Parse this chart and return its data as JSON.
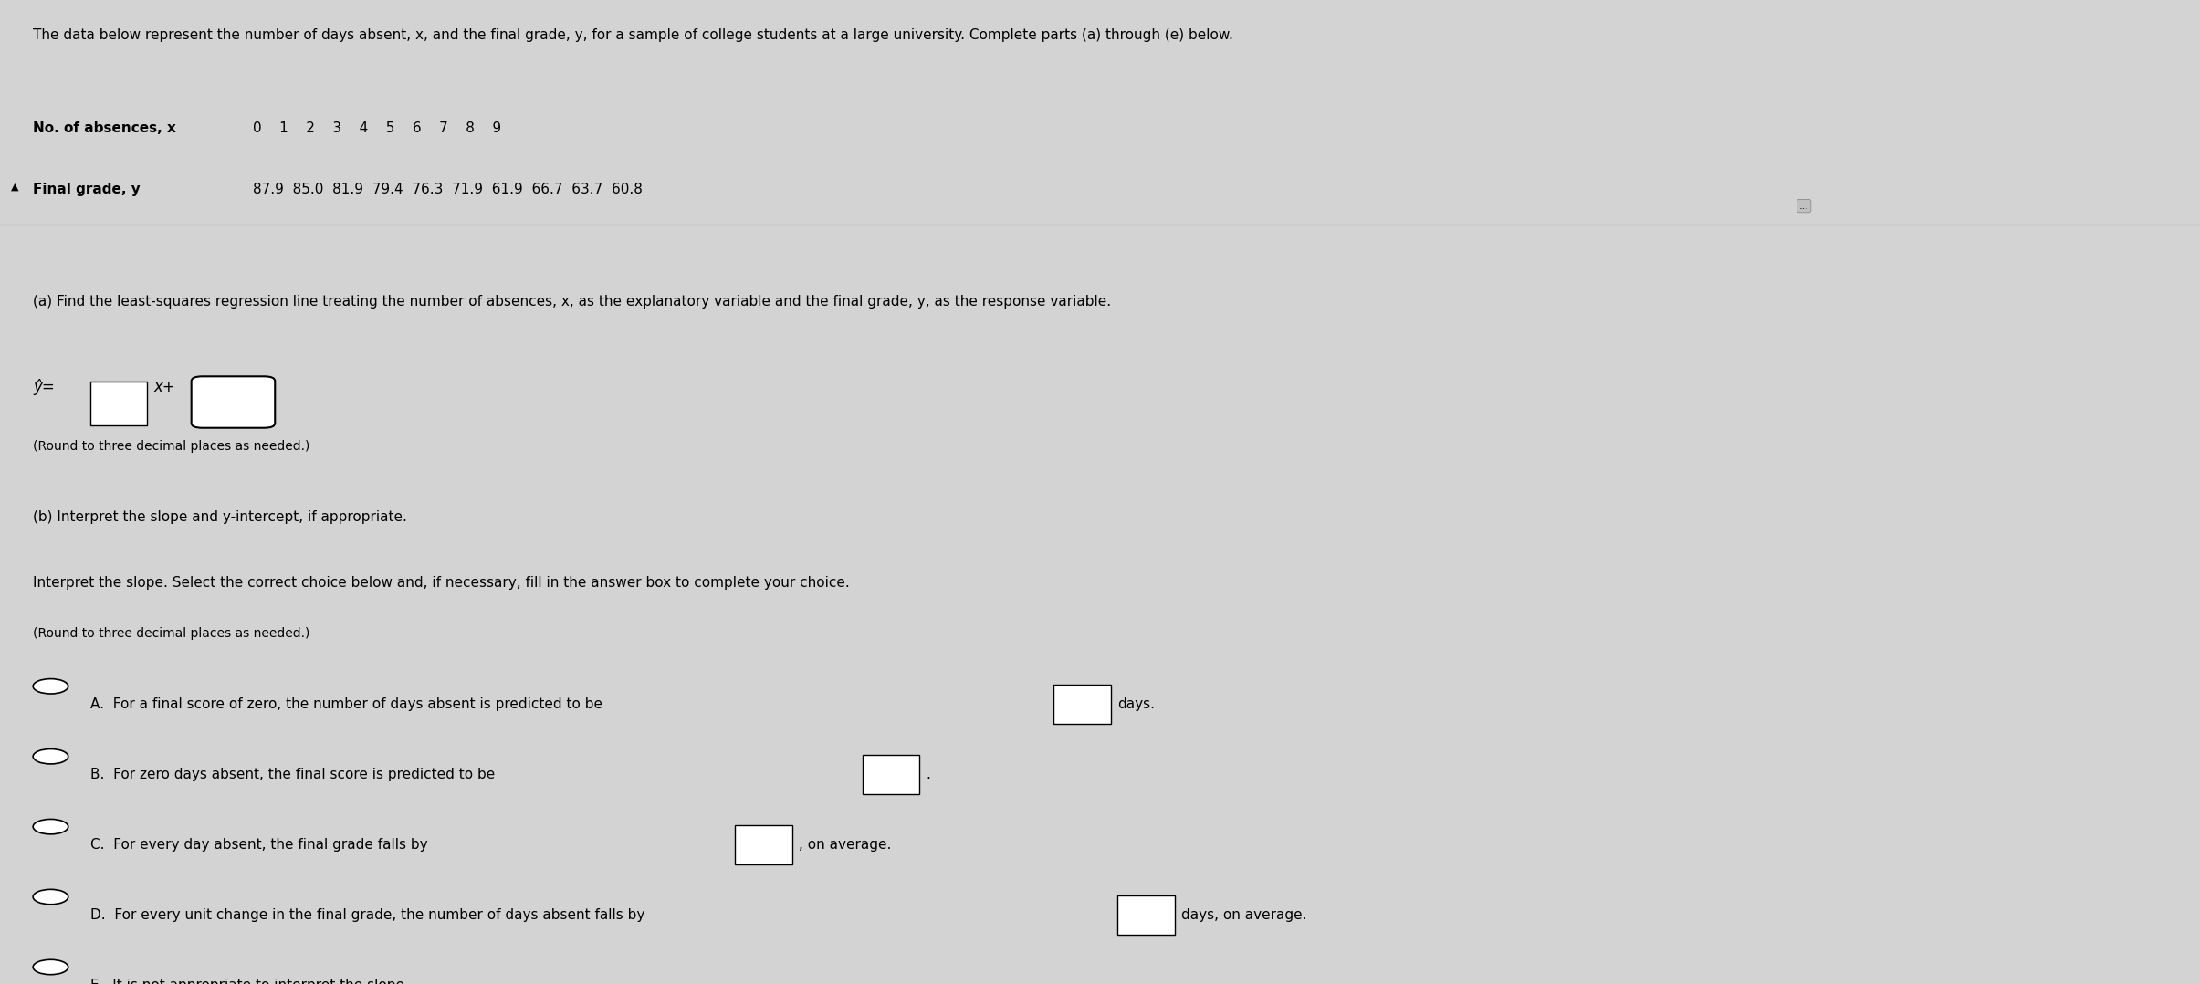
{
  "bg_color": "#d3d3d3",
  "title_text": "The data below represent the number of days absent, x, and the final grade, y, for a sample of college students at a large university. Complete parts (a) through (e) below.",
  "row1_label": "No. of absences, x",
  "row1_values": "0    1    2    3    4    5    6    7    8    9",
  "row2_label": "Final grade, y",
  "row2_values": "87.9  85.0  81.9  79.4  76.3  71.9  61.9  66.7  63.7  60.8",
  "part_a_text": "(a) Find the least-squares regression line treating the number of absences, x, as the explanatory variable and the final grade, y, as the response variable.",
  "equation_line1": "ŷ=",
  "equation_box1": "□",
  "equation_mid": "x+",
  "equation_box2": "□",
  "round_note_a": "(Round to three decimal places as needed.)",
  "part_b_header": "(b) Interpret the slope and y-intercept, if appropriate.",
  "interpret_intro": "Interpret the slope. Select the correct choice below and, if necessary, fill in the answer box to complete your choice.",
  "round_note_b": "(Round to three decimal places as needed.)",
  "option_A": "A.  For a final score of zero, the number of days absent is predicted to be",
  "option_A_box": "□",
  "option_A_end": "days.",
  "option_B": "B.  For zero days absent, the final score is predicted to be",
  "option_B_box": "□",
  "option_B_end": ".",
  "option_C": "C.  For every day absent, the final grade falls by",
  "option_C_box": "□",
  "option_C_end": ", on average.",
  "option_D": "D.  For every unit change in the final grade, the number of days absent falls by",
  "option_D_box": "□",
  "option_D_end": "days, on average.",
  "option_E": "E.  It is not appropriate to interpret the slope.",
  "dots_button": "...",
  "font_size_title": 11,
  "font_size_body": 11,
  "font_size_small": 10
}
